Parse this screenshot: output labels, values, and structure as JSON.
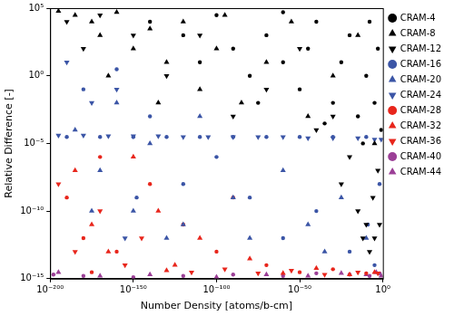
{
  "chart_data": {
    "type": "scatter",
    "x_label": "Number Density [atoms/b-cm]",
    "y_label": "Relative Difference [-]",
    "log": true,
    "grid": false,
    "legend": "right",
    "xlim": [
      1e-200,
      1
    ],
    "ylim": [
      1e-15,
      100000.0
    ],
    "xticks": [
      {
        "value": 1e-200,
        "label": "10⁻²⁰⁰"
      },
      {
        "value": 1e-150,
        "label": "10⁻¹⁵⁰"
      },
      {
        "value": 1e-100,
        "label": "10⁻¹⁰⁰"
      },
      {
        "value": 1e-50,
        "label": "10⁻⁵⁰"
      },
      {
        "value": 1,
        "label": "10⁰"
      }
    ],
    "yticks": [
      {
        "value": 1e-15,
        "label": "10⁻¹⁵"
      },
      {
        "value": 1e-10,
        "label": "10⁻¹⁰"
      },
      {
        "value": 1e-05,
        "label": "10⁻⁵"
      },
      {
        "value": 1,
        "label": "10⁰"
      },
      {
        "value": 100000.0,
        "label": "10⁵"
      }
    ],
    "series": [
      {
        "name": "CRAM-4",
        "color": "#000000",
        "marker": "circle",
        "x": [
          1e-140,
          1e-120,
          1e-100,
          1e-90,
          1e-80,
          1e-70,
          1e-60,
          1e-50,
          1e-45,
          1e-40,
          1e-30,
          1e-25,
          1e-20,
          1e-15,
          1e-10,
          1e-08,
          1e-05,
          0.001,
          0.1,
          1e-60,
          1e-110,
          1e-75,
          1e-35,
          1e-12
        ],
        "values": [
          10000.0,
          1000.0,
          30000.0,
          100.0,
          1,
          1000.0,
          10,
          0.1,
          100.0,
          10000.0,
          0.01,
          10,
          1000.0,
          0.001,
          1,
          10000.0,
          0.01,
          100.0,
          0.0001,
          50000.0,
          10,
          0.01,
          0.0003,
          1e-05
        ]
      },
      {
        "name": "CRAM-8",
        "color": "#000000",
        "marker": "triangle",
        "x": [
          1e-195,
          1e-185,
          1e-175,
          1e-170,
          1e-160,
          1e-150,
          1e-140,
          1e-130,
          1e-120,
          1e-110,
          1e-100,
          1e-95,
          1e-85,
          1e-70,
          1e-55,
          1e-45,
          1e-30,
          1e-15,
          1e-165,
          1e-135,
          1e-05
        ],
        "values": [
          60000.0,
          30000.0,
          10000.0,
          1000.0,
          50000.0,
          100.0,
          3000.0,
          10,
          10000.0,
          0.1,
          100.0,
          30000.0,
          0.01,
          10,
          10000.0,
          0.001,
          1,
          1000.0,
          1,
          0.01,
          1e-05
        ]
      },
      {
        "name": "CRAM-12",
        "color": "#000000",
        "marker": "triangle_down",
        "x": [
          1e-190,
          1e-180,
          1e-170,
          1e-150,
          1e-130,
          1e-110,
          1e-90,
          1e-70,
          1e-40,
          1e-25,
          1e-20,
          1e-15,
          1e-12,
          1e-10,
          1e-08,
          1e-06,
          1e-05,
          0.001,
          0.01,
          1e-30,
          1e-50
        ],
        "values": [
          10000.0,
          100.0,
          30000.0,
          1000.0,
          1,
          1000.0,
          0.001,
          0.1,
          0.0001,
          1e-08,
          1e-06,
          1e-10,
          1e-12,
          1e-11,
          1e-13,
          1e-09,
          1e-12,
          1e-07,
          1e-11,
          0.001,
          100.0
        ]
      },
      {
        "name": "CRAM-16",
        "color": "#3b55a6",
        "marker": "circle",
        "x": [
          1e-190,
          1e-170,
          1e-150,
          1e-130,
          1e-110,
          1e-90,
          1e-70,
          1e-50,
          1e-30,
          1e-10,
          1e-180,
          1e-160,
          1e-140,
          1e-120,
          1e-100,
          1e-80,
          1e-60,
          1e-40,
          1e-20,
          1e-09,
          1e-05,
          0.01,
          1e-148
        ],
        "values": [
          3e-05,
          3e-05,
          3e-05,
          3e-05,
          3e-05,
          3e-05,
          3e-05,
          3e-05,
          3e-05,
          3e-05,
          0.1,
          3,
          0.001,
          1e-08,
          1e-06,
          1e-09,
          1e-12,
          1e-10,
          1e-13,
          1e-11,
          1e-14,
          1e-08,
          1e-09
        ]
      },
      {
        "name": "CRAM-20",
        "color": "#3b55a6",
        "marker": "triangle",
        "x": [
          1e-185,
          1e-170,
          1e-160,
          1e-150,
          1e-140,
          1e-120,
          1e-110,
          1e-90,
          1e-80,
          1e-60,
          1e-45,
          1e-35,
          1e-25,
          1e-10,
          1e-130,
          1e-175
        ],
        "values": [
          0.0001,
          1e-07,
          0.01,
          1e-10,
          1e-05,
          1e-11,
          0.001,
          1e-09,
          1e-12,
          1e-07,
          1e-11,
          1e-13,
          1e-09,
          1e-12,
          1e-12,
          1e-10
        ]
      },
      {
        "name": "CRAM-24",
        "color": "#3b55a6",
        "marker": "triangle_down",
        "x": [
          1e-195,
          1e-180,
          1e-165,
          1e-150,
          1e-135,
          1e-120,
          1e-105,
          1e-90,
          1e-75,
          1e-60,
          1e-45,
          1e-30,
          1e-15,
          1e-05,
          0.1,
          1e-190,
          1e-175,
          1e-160,
          1e-155
        ],
        "values": [
          4e-05,
          4e-05,
          3.5e-05,
          3.5e-05,
          3.5e-05,
          3e-05,
          3e-05,
          3e-05,
          3e-05,
          3e-05,
          2.5e-05,
          2.5e-05,
          2.5e-05,
          2e-05,
          2e-05,
          10,
          0.01,
          0.1,
          1e-12
        ]
      },
      {
        "name": "CRAM-28",
        "color": "#e8261c",
        "marker": "circle",
        "x": [
          1e-190,
          1e-180,
          1e-170,
          1e-160,
          1e-140,
          1e-120,
          1e-100,
          1e-90,
          1e-70,
          1e-50,
          1e-30,
          1e-10,
          1e-175
        ],
        "values": [
          1e-09,
          1e-12,
          1e-06,
          1e-13,
          1e-08,
          1e-11,
          1e-13,
          1e-09,
          1e-14,
          3e-15,
          5e-15,
          2.5e-15,
          3e-15
        ]
      },
      {
        "name": "CRAM-32",
        "color": "#e8261c",
        "marker": "triangle",
        "x": [
          1e-185,
          1e-175,
          1e-165,
          1e-150,
          1e-135,
          1e-125,
          1e-110,
          1e-80,
          1e-60,
          1e-40,
          1e-20,
          1e-05,
          1e-130
        ],
        "values": [
          1e-07,
          1e-11,
          1e-13,
          1e-06,
          1e-10,
          1e-14,
          1e-12,
          3e-14,
          2.5e-15,
          6e-15,
          2e-15,
          3e-15,
          4e-15
        ]
      },
      {
        "name": "CRAM-36",
        "color": "#e8261c",
        "marker": "triangle_down",
        "x": [
          1e-195,
          1e-185,
          1e-170,
          1e-155,
          1e-145,
          1e-115,
          1e-95,
          1e-75,
          1e-55,
          1e-35,
          1e-15,
          0.001
        ],
        "values": [
          1e-08,
          1e-13,
          1e-10,
          1e-14,
          1e-12,
          3e-15,
          5e-15,
          2.5e-15,
          4e-15,
          2e-15,
          3e-15,
          2.5e-15
        ]
      },
      {
        "name": "CRAM-40",
        "color": "#9b3f96",
        "marker": "circle",
        "x": [
          1e-198,
          1e-180,
          1e-150,
          1e-120,
          1e-90,
          1e-60,
          1e-40,
          1e-20,
          1e-08,
          0.01
        ],
        "values": [
          2e-15,
          1.6e-15,
          1.3e-15,
          1.6e-15,
          2e-15,
          1.6e-15,
          2.5e-15,
          2e-15,
          1.6e-15,
          2.5e-15
        ]
      },
      {
        "name": "CRAM-44",
        "color": "#9b3f96",
        "marker": "triangle",
        "x": [
          1e-195,
          1e-170,
          1e-140,
          1e-100,
          1e-70,
          1e-45,
          1e-25,
          1e-10,
          0.0001,
          0.1
        ],
        "values": [
          3e-15,
          1.6e-15,
          2e-15,
          1.3e-15,
          2e-15,
          1.6e-15,
          2.5e-15,
          2e-15,
          3e-15,
          1.6e-15
        ]
      }
    ]
  }
}
